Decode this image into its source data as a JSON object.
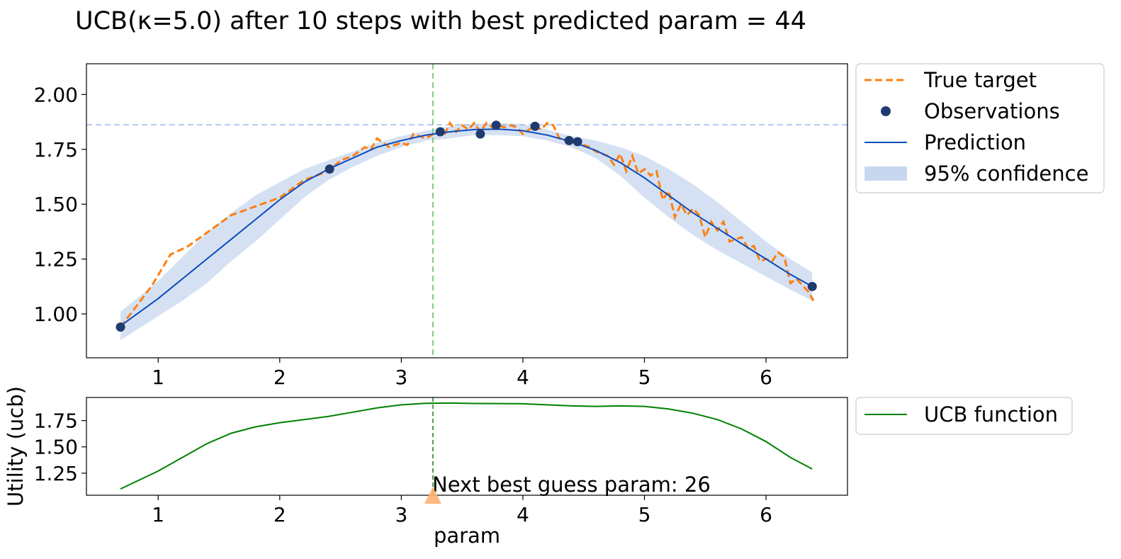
{
  "title": "UCB(κ=5.0) after 10 steps with best predicted param = 44",
  "chart_data": [
    {
      "type": "line",
      "name": "main",
      "xlim": [
        0.41,
        6.67
      ],
      "ylim": [
        0.8,
        2.14
      ],
      "xticks": [
        1,
        2,
        3,
        4,
        5,
        6
      ],
      "yticks": [
        1.0,
        1.25,
        1.5,
        1.75,
        2.0
      ],
      "xtick_labels": [
        "1",
        "2",
        "3",
        "4",
        "5",
        "6"
      ],
      "ytick_labels": [
        "1.00",
        "1.25",
        "1.50",
        "1.75",
        "2.00"
      ],
      "hline_y": 1.862,
      "vline_x": 3.26,
      "legend": {
        "placement": "outside-right-top",
        "entries": [
          "True target",
          "Observations",
          "Prediction",
          "95% confidence"
        ]
      },
      "series": [
        {
          "name": "True target",
          "style": "dashed",
          "color": "#ff7f0e",
          "x": [
            0.69,
            0.8,
            0.95,
            1.1,
            1.25,
            1.4,
            1.6,
            1.8,
            2.0,
            2.2,
            2.4,
            2.5,
            2.6,
            2.7,
            2.75,
            2.8,
            2.9,
            3.0,
            3.05,
            3.1,
            3.2,
            3.3,
            3.35,
            3.4,
            3.45,
            3.5,
            3.55,
            3.6,
            3.65,
            3.7,
            3.75,
            3.8,
            3.85,
            3.9,
            3.95,
            4.0,
            4.05,
            4.1,
            4.15,
            4.2,
            4.25,
            4.3,
            4.35,
            4.4,
            4.45,
            4.5,
            4.55,
            4.6,
            4.65,
            4.7,
            4.75,
            4.8,
            4.85,
            4.9,
            4.95,
            5.0,
            5.05,
            5.1,
            5.15,
            5.2,
            5.25,
            5.3,
            5.35,
            5.4,
            5.45,
            5.5,
            5.55,
            5.6,
            5.65,
            5.7,
            5.75,
            5.8,
            5.85,
            5.9,
            5.95,
            6.0,
            6.05,
            6.1,
            6.15,
            6.2,
            6.25,
            6.3,
            6.35,
            6.39
          ],
          "y": [
            0.94,
            1.02,
            1.13,
            1.27,
            1.31,
            1.37,
            1.45,
            1.49,
            1.53,
            1.61,
            1.65,
            1.7,
            1.72,
            1.76,
            1.75,
            1.8,
            1.76,
            1.78,
            1.77,
            1.82,
            1.8,
            1.83,
            1.81,
            1.87,
            1.83,
            1.86,
            1.84,
            1.87,
            1.83,
            1.87,
            1.85,
            1.86,
            1.85,
            1.86,
            1.85,
            1.82,
            1.84,
            1.86,
            1.84,
            1.87,
            1.86,
            1.8,
            1.79,
            1.78,
            1.79,
            1.77,
            1.76,
            1.74,
            1.73,
            1.72,
            1.68,
            1.73,
            1.65,
            1.72,
            1.64,
            1.66,
            1.63,
            1.65,
            1.52,
            1.56,
            1.44,
            1.5,
            1.45,
            1.48,
            1.45,
            1.35,
            1.42,
            1.38,
            1.42,
            1.33,
            1.34,
            1.35,
            1.3,
            1.31,
            1.24,
            1.25,
            1.24,
            1.28,
            1.26,
            1.14,
            1.16,
            1.13,
            1.1,
            1.06
          ]
        },
        {
          "name": "Observations",
          "style": "markers",
          "color": "#1f3b6f",
          "x": [
            0.69,
            2.41,
            3.32,
            3.65,
            3.78,
            4.1,
            4.38,
            4.45,
            6.38
          ],
          "y": [
            0.94,
            1.66,
            1.83,
            1.82,
            1.86,
            1.855,
            1.79,
            1.785,
            1.125
          ]
        },
        {
          "name": "Prediction",
          "style": "solid",
          "color": "#0b4bbd",
          "x": [
            0.69,
            1.0,
            1.2,
            1.4,
            1.6,
            1.8,
            2.0,
            2.2,
            2.4,
            2.6,
            2.8,
            3.0,
            3.2,
            3.4,
            3.6,
            3.8,
            4.0,
            4.2,
            4.4,
            4.6,
            4.8,
            5.0,
            5.2,
            5.4,
            5.6,
            5.8,
            6.0,
            6.2,
            6.38
          ],
          "y": [
            0.945,
            1.07,
            1.16,
            1.25,
            1.34,
            1.43,
            1.52,
            1.6,
            1.66,
            1.71,
            1.76,
            1.79,
            1.815,
            1.83,
            1.84,
            1.842,
            1.835,
            1.815,
            1.785,
            1.745,
            1.69,
            1.62,
            1.54,
            1.46,
            1.39,
            1.32,
            1.25,
            1.18,
            1.125
          ]
        },
        {
          "name": "95% confidence",
          "style": "band",
          "color": "#c7d7ef",
          "x": [
            0.69,
            1.0,
            1.2,
            1.4,
            1.6,
            1.8,
            2.0,
            2.2,
            2.4,
            2.6,
            2.8,
            3.0,
            3.2,
            3.4,
            3.6,
            3.8,
            4.0,
            4.2,
            4.4,
            4.6,
            4.8,
            5.0,
            5.2,
            5.4,
            5.6,
            5.8,
            6.0,
            6.2,
            6.38
          ],
          "upper": [
            1.01,
            1.15,
            1.26,
            1.37,
            1.46,
            1.54,
            1.6,
            1.66,
            1.7,
            1.74,
            1.78,
            1.81,
            1.835,
            1.855,
            1.865,
            1.87,
            1.865,
            1.84,
            1.81,
            1.79,
            1.76,
            1.72,
            1.66,
            1.59,
            1.51,
            1.42,
            1.33,
            1.25,
            1.19
          ],
          "lower": [
            0.88,
            0.99,
            1.06,
            1.14,
            1.24,
            1.33,
            1.43,
            1.53,
            1.61,
            1.67,
            1.72,
            1.76,
            1.79,
            1.8,
            1.815,
            1.815,
            1.81,
            1.79,
            1.76,
            1.71,
            1.63,
            1.53,
            1.44,
            1.36,
            1.29,
            1.23,
            1.17,
            1.11,
            1.06
          ]
        }
      ]
    },
    {
      "type": "line",
      "name": "utility",
      "xlim": [
        0.41,
        6.67
      ],
      "ylim": [
        1.04,
        1.97
      ],
      "xticks": [
        1,
        2,
        3,
        4,
        5,
        6
      ],
      "yticks": [
        1.25,
        1.5,
        1.75
      ],
      "xtick_labels": [
        "1",
        "2",
        "3",
        "4",
        "5",
        "6"
      ],
      "ytick_labels": [
        "1.25",
        "1.50",
        "1.75"
      ],
      "xlabel": "param",
      "ylabel": "Utility (ucb)",
      "vline_x": 3.26,
      "marker_x": 3.26,
      "annotation": "Next best guess param: 26",
      "legend": {
        "placement": "outside-right-top",
        "entries": [
          "UCB function"
        ]
      },
      "series": [
        {
          "name": "UCB function",
          "style": "solid",
          "color": "#008000",
          "x": [
            0.69,
            1.0,
            1.2,
            1.4,
            1.6,
            1.8,
            2.0,
            2.2,
            2.4,
            2.6,
            2.8,
            3.0,
            3.2,
            3.4,
            3.6,
            3.8,
            4.0,
            4.2,
            4.4,
            4.6,
            4.8,
            5.0,
            5.2,
            5.4,
            5.6,
            5.8,
            6.0,
            6.2,
            6.38
          ],
          "y": [
            1.1,
            1.27,
            1.4,
            1.53,
            1.63,
            1.69,
            1.73,
            1.76,
            1.79,
            1.83,
            1.87,
            1.9,
            1.915,
            1.917,
            1.913,
            1.912,
            1.91,
            1.9,
            1.89,
            1.885,
            1.89,
            1.885,
            1.86,
            1.82,
            1.76,
            1.67,
            1.55,
            1.4,
            1.29
          ]
        }
      ]
    }
  ]
}
